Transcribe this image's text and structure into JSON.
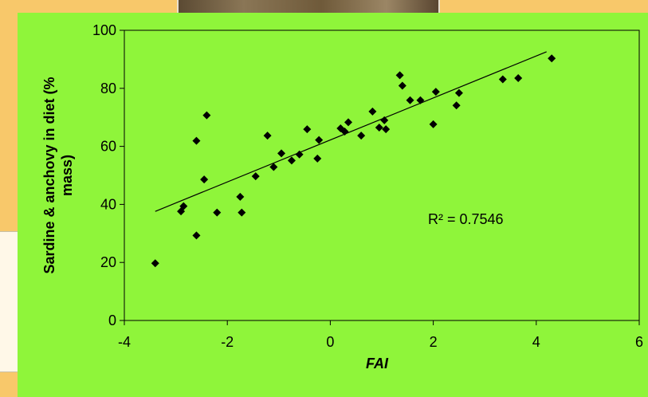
{
  "chart_data": {
    "type": "scatter",
    "title": "",
    "xlabel": "FAI",
    "ylabel": "Sardine & anchovy in diet (% mass)",
    "xlim": [
      -4,
      6
    ],
    "ylim": [
      0,
      100
    ],
    "x_ticks": [
      -4,
      -2,
      0,
      2,
      4,
      6
    ],
    "y_ticks": [
      0,
      20,
      40,
      60,
      80,
      100
    ],
    "grid": false,
    "legend": "none",
    "annotation": "R² = 0.7546",
    "trendline": {
      "x": [
        -3.4,
        4.2
      ],
      "y": [
        37.6,
        92.6
      ]
    },
    "points": [
      {
        "x": -3.4,
        "y": 19.7
      },
      {
        "x": -2.9,
        "y": 37.6
      },
      {
        "x": -2.85,
        "y": 39.4
      },
      {
        "x": -2.6,
        "y": 29.3
      },
      {
        "x": -2.6,
        "y": 61.9
      },
      {
        "x": -2.45,
        "y": 48.6
      },
      {
        "x": -2.4,
        "y": 70.7
      },
      {
        "x": -2.2,
        "y": 37.2
      },
      {
        "x": -1.75,
        "y": 42.6
      },
      {
        "x": -1.72,
        "y": 37.2
      },
      {
        "x": -1.45,
        "y": 49.7
      },
      {
        "x": -1.22,
        "y": 63.7
      },
      {
        "x": -1.1,
        "y": 52.9
      },
      {
        "x": -0.95,
        "y": 57.6
      },
      {
        "x": -0.75,
        "y": 55.1
      },
      {
        "x": -0.6,
        "y": 57.2
      },
      {
        "x": -0.45,
        "y": 65.9
      },
      {
        "x": -0.25,
        "y": 55.8
      },
      {
        "x": -0.22,
        "y": 62.2
      },
      {
        "x": 0.2,
        "y": 66.2
      },
      {
        "x": 0.28,
        "y": 65.1
      },
      {
        "x": 0.35,
        "y": 68.3
      },
      {
        "x": 0.6,
        "y": 63.7
      },
      {
        "x": 0.82,
        "y": 72.0
      },
      {
        "x": 0.95,
        "y": 66.5
      },
      {
        "x": 1.05,
        "y": 69.0
      },
      {
        "x": 1.08,
        "y": 65.9
      },
      {
        "x": 1.35,
        "y": 84.5
      },
      {
        "x": 1.4,
        "y": 80.9
      },
      {
        "x": 1.55,
        "y": 75.9
      },
      {
        "x": 1.75,
        "y": 75.9
      },
      {
        "x": 2.0,
        "y": 67.6
      },
      {
        "x": 2.05,
        "y": 78.8
      },
      {
        "x": 2.45,
        "y": 74.1
      },
      {
        "x": 2.5,
        "y": 78.4
      },
      {
        "x": 3.35,
        "y": 83.1
      },
      {
        "x": 3.65,
        "y": 83.5
      },
      {
        "x": 4.3,
        "y": 90.3
      }
    ]
  }
}
